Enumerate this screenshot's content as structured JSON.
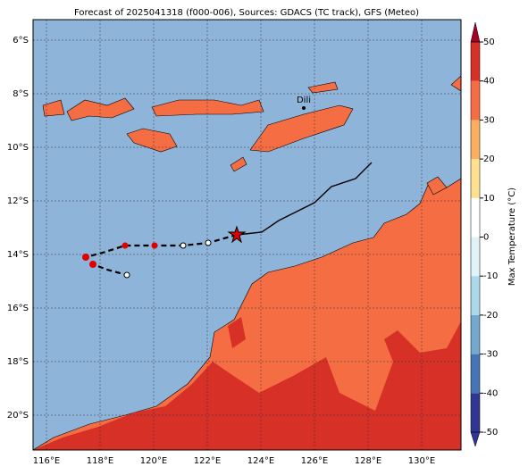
{
  "title": "Forecast of 2025041318 (f000-006), Sources: GDACS (TC track), GFS (Meteo)",
  "lon_labels": [
    "116°E",
    "118°E",
    "120°E",
    "122°E",
    "124°E",
    "126°E",
    "128°E",
    "130°E"
  ],
  "lat_labels": [
    "6°S",
    "8°S",
    "10°S",
    "12°S",
    "14°S",
    "16°S",
    "18°S",
    "20°S"
  ],
  "places": [
    {
      "label": "Dili"
    }
  ],
  "colorbar": {
    "label": "Max Temperature (°C)",
    "ticks": [
      -50,
      -40,
      -30,
      -20,
      -10,
      0,
      10,
      20,
      30,
      40,
      50
    ],
    "colors": [
      "#313695",
      "#4575b4",
      "#74a9cf",
      "#abd9e9",
      "#e0f3f8",
      "#ffffff",
      "#fee090",
      "#fdae61",
      "#f46d43",
      "#d73027",
      "#a50026"
    ]
  }
}
